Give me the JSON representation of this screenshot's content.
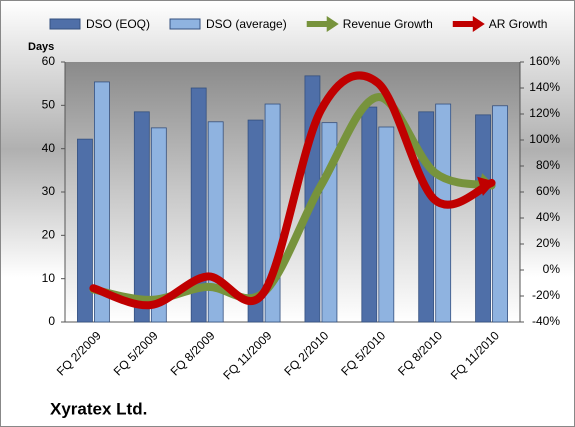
{
  "chart_data": {
    "type": "bar-line",
    "title": "Xyratex Ltd.",
    "y_label": "Days",
    "categories": [
      "FQ 2/2009",
      "FQ 5/2009",
      "FQ 8/2009",
      "FQ 11/2009",
      "FQ 2/2010",
      "FQ 5/2010",
      "FQ 8/2010",
      "FQ 11/2010"
    ],
    "series": [
      {
        "name": "DSO (EOQ)",
        "type": "bar",
        "color": "#4f6fa8",
        "values": [
          42.2,
          48.5,
          54,
          46.6,
          56.8,
          49.6,
          48.5,
          47.8
        ]
      },
      {
        "name": "DSO (average)",
        "type": "bar",
        "color": "#8fb3e0",
        "values": [
          55.4,
          44.8,
          46.2,
          50.3,
          46,
          45,
          50.3,
          49.9
        ]
      },
      {
        "name": "Revenue Growth",
        "type": "line",
        "axis": "y2",
        "color": "#77933c",
        "values": [
          -15,
          -23,
          -13,
          -17,
          65,
          133,
          75,
          65
        ]
      },
      {
        "name": "AR Growth",
        "type": "line",
        "axis": "y2",
        "color": "#c00000",
        "values": [
          -14,
          -27,
          -5,
          -17,
          123,
          144,
          54,
          67
        ]
      }
    ],
    "ylim": [
      0,
      60
    ],
    "yticks": [
      0,
      10,
      20,
      30,
      40,
      50,
      60
    ],
    "y2lim": [
      -40,
      160
    ],
    "y2ticks": [
      {
        "value": -40,
        "label": "-40%"
      },
      {
        "value": -20,
        "label": "-20%"
      },
      {
        "value": 0,
        "label": "0%"
      },
      {
        "value": 20,
        "label": "20%"
      },
      {
        "value": 40,
        "label": "40%"
      },
      {
        "value": 60,
        "label": "60%"
      },
      {
        "value": 80,
        "label": "80%"
      },
      {
        "value": 100,
        "label": "100%"
      },
      {
        "value": 120,
        "label": "120%"
      },
      {
        "value": 140,
        "label": "140%"
      },
      {
        "value": 160,
        "label": "160%"
      }
    ],
    "legend": "top"
  }
}
